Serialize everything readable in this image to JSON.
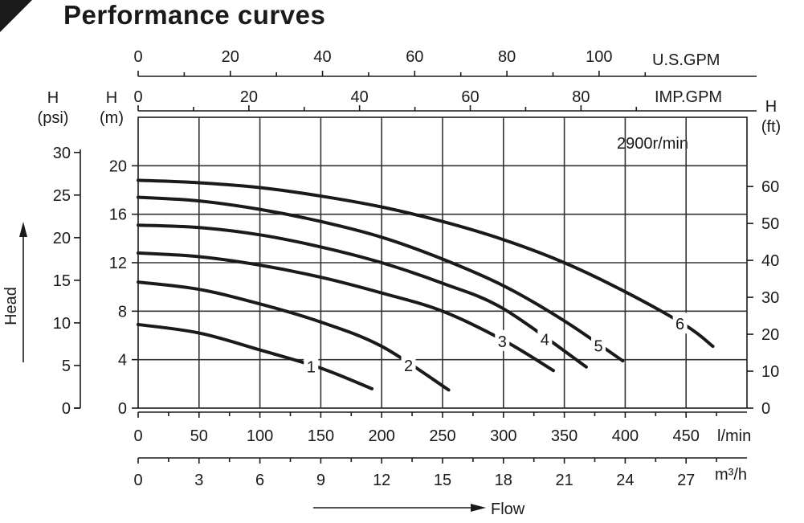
{
  "title": "Performance curves",
  "speed_label": "2900r/min",
  "flow_label": "Flow",
  "head_label": "Head",
  "chart_data": {
    "type": "line",
    "title": "Performance curves",
    "annotation": "2900r/min",
    "xlabel": "Flow",
    "ylabel": "Head",
    "grid": true,
    "x_primary": {
      "unit": "l/min",
      "range": [
        0,
        500
      ],
      "ticks": [
        0,
        50,
        100,
        150,
        200,
        250,
        300,
        350,
        400,
        450
      ]
    },
    "x_secondary": [
      {
        "unit": "m³/h",
        "ticks": [
          0,
          3,
          6,
          9,
          12,
          15,
          18,
          21,
          24,
          27
        ]
      },
      {
        "unit": "U.S.GPM",
        "ticks": [
          0,
          20,
          40,
          60,
          80,
          100
        ]
      },
      {
        "unit": "IMP.GPM",
        "ticks": [
          0,
          20,
          40,
          60,
          80
        ]
      }
    ],
    "y_primary": {
      "label": "H",
      "unit": "(m)",
      "range": [
        0,
        24
      ],
      "ticks": [
        0,
        4,
        8,
        12,
        16,
        20
      ]
    },
    "y_secondary": [
      {
        "label": "H",
        "unit": "(psi)",
        "ticks": [
          0,
          5,
          10,
          15,
          20,
          25,
          30
        ]
      },
      {
        "label": "H",
        "unit": "(ft)",
        "ticks": [
          0,
          10,
          20,
          30,
          40,
          50,
          60
        ]
      }
    ],
    "series": [
      {
        "name": "1",
        "x": [
          0,
          50,
          100,
          150,
          192
        ],
        "y": [
          6.9,
          6.2,
          4.8,
          3.3,
          1.6
        ]
      },
      {
        "name": "2",
        "x": [
          0,
          50,
          100,
          150,
          200,
          255
        ],
        "y": [
          10.4,
          9.8,
          8.6,
          7.1,
          5.1,
          1.5
        ]
      },
      {
        "name": "3",
        "x": [
          0,
          50,
          100,
          150,
          200,
          250,
          300,
          341
        ],
        "y": [
          12.8,
          12.5,
          11.8,
          10.8,
          9.5,
          8.0,
          5.6,
          3.1
        ]
      },
      {
        "name": "4",
        "x": [
          0,
          50,
          100,
          150,
          200,
          250,
          300,
          368
        ],
        "y": [
          15.1,
          14.9,
          14.3,
          13.3,
          12.0,
          10.3,
          8.2,
          3.4
        ]
      },
      {
        "name": "5",
        "x": [
          0,
          50,
          100,
          150,
          200,
          250,
          300,
          350,
          398
        ],
        "y": [
          17.4,
          17.1,
          16.4,
          15.4,
          14.1,
          12.3,
          10.1,
          7.2,
          3.9
        ]
      },
      {
        "name": "6",
        "x": [
          0,
          50,
          100,
          150,
          200,
          250,
          300,
          350,
          400,
          450,
          472
        ],
        "y": [
          18.8,
          18.6,
          18.2,
          17.5,
          16.6,
          15.4,
          13.9,
          12.0,
          9.6,
          6.8,
          5.1
        ]
      }
    ],
    "series_label_positions_x": [
      142,
      222,
      299,
      334,
      378,
      445
    ]
  }
}
